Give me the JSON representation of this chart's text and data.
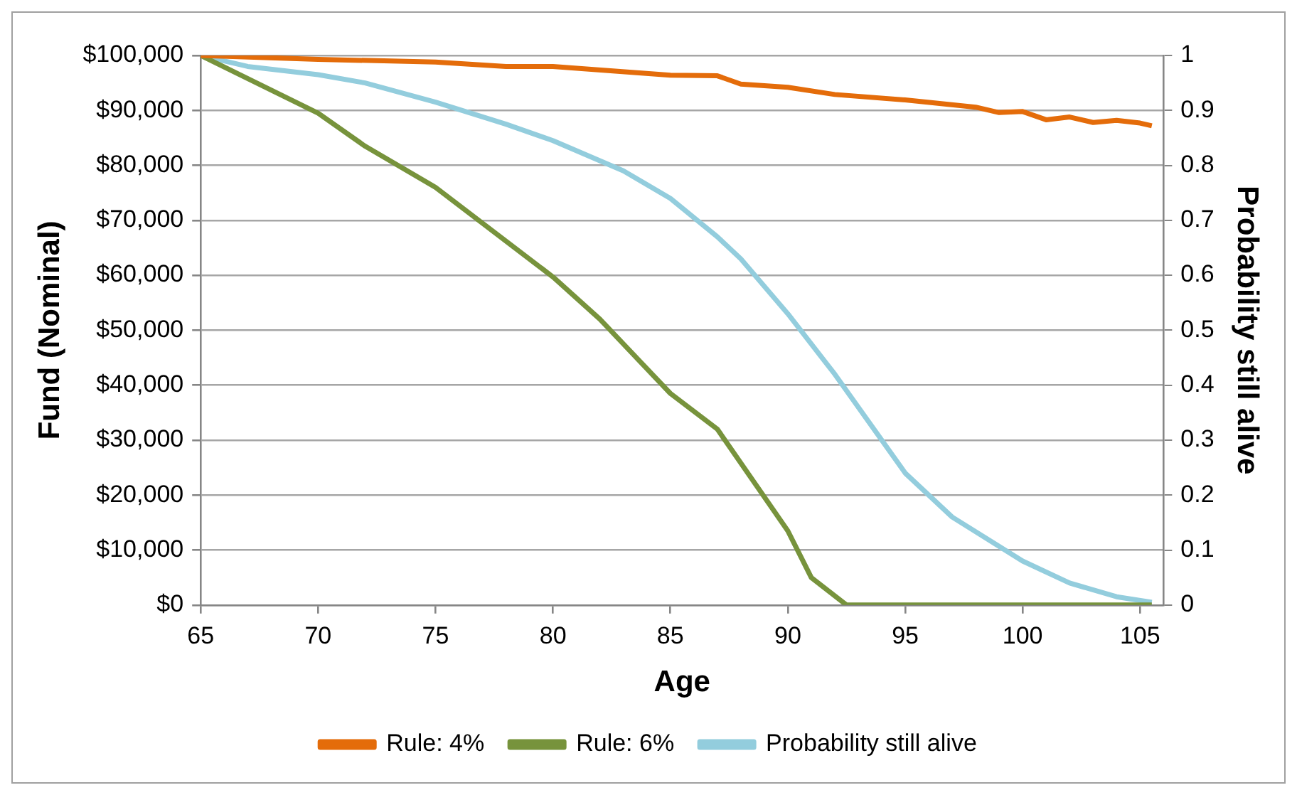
{
  "chart_data": {
    "type": "line",
    "xlabel": "Age",
    "ylabel": "Fund (Nominal)",
    "y2label": "Probability still alive",
    "xlim": [
      65,
      106
    ],
    "xticks": [
      65,
      70,
      75,
      80,
      85,
      90,
      95,
      100,
      105
    ],
    "ylim": [
      0,
      100000
    ],
    "yticks": [
      {
        "value": 0,
        "label": "$0"
      },
      {
        "value": 10000,
        "label": "$10,000"
      },
      {
        "value": 20000,
        "label": "$20,000"
      },
      {
        "value": 30000,
        "label": "$30,000"
      },
      {
        "value": 40000,
        "label": "$40,000"
      },
      {
        "value": 50000,
        "label": "$50,000"
      },
      {
        "value": 60000,
        "label": "$60,000"
      },
      {
        "value": 70000,
        "label": "$70,000"
      },
      {
        "value": 80000,
        "label": "$80,000"
      },
      {
        "value": 90000,
        "label": "$90,000"
      },
      {
        "value": 100000,
        "label": "$100,000"
      }
    ],
    "y2lim": [
      0,
      1
    ],
    "y2ticks": [
      0,
      0.1,
      0.2,
      0.3,
      0.4,
      0.5,
      0.6,
      0.7,
      0.8,
      0.9,
      1
    ],
    "grid": "y",
    "legend": "bottom",
    "marker": "none",
    "line_style": "solid",
    "series": [
      {
        "name": "Rule: 4%",
        "color": "#e46c0a",
        "x": [
          65,
          70,
          75,
          78,
          80,
          85,
          87,
          88,
          90,
          92,
          95,
          98,
          99,
          100,
          101,
          102,
          103,
          104,
          105,
          105.5
        ],
        "values": [
          100000,
          99300,
          98800,
          98000,
          98000,
          96400,
          96300,
          94800,
          94200,
          92900,
          91900,
          90600,
          89600,
          89800,
          88300,
          88800,
          87800,
          88200,
          87700,
          87200
        ]
      },
      {
        "name": "Rule: 6%",
        "color": "#77933c",
        "x": [
          65,
          70,
          72,
          75,
          80,
          82,
          85,
          87,
          90,
          91,
          92.5,
          95,
          100,
          105.5
        ],
        "values": [
          100000,
          89500,
          83500,
          76000,
          59700,
          52000,
          38500,
          32000,
          13500,
          5000,
          0,
          0,
          0,
          0
        ]
      },
      {
        "name": "Probability still alive",
        "color": "#93cddd",
        "axis": "y2",
        "x": [
          65,
          67,
          70,
          72,
          75,
          78,
          80,
          83,
          85,
          87,
          88,
          90,
          92,
          95,
          97,
          100,
          102,
          104,
          105.5
        ],
        "values": [
          1,
          0.98,
          0.965,
          0.95,
          0.915,
          0.875,
          0.845,
          0.79,
          0.74,
          0.67,
          0.63,
          0.53,
          0.42,
          0.24,
          0.16,
          0.08,
          0.04,
          0.015,
          0.005
        ]
      }
    ]
  }
}
